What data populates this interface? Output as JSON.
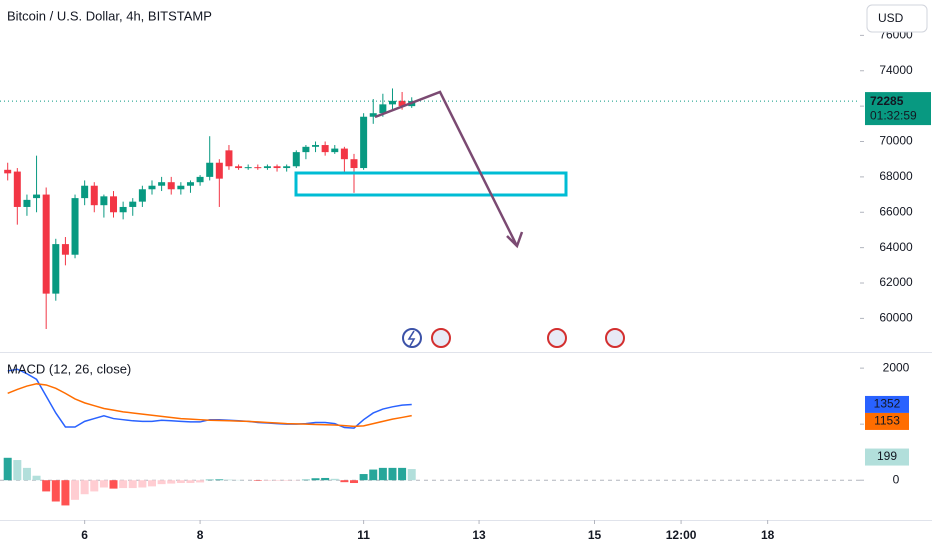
{
  "toolbar": {
    "currency": "USD"
  },
  "chart_data": [
    {
      "type": "candlestick",
      "title": "Bitcoin / U.S. Dollar, 4h, BITSTAMP",
      "open": [
        68400,
        68300,
        66300,
        66800,
        67000,
        61400,
        64200,
        63600,
        66800,
        67500,
        66400,
        66900,
        66000,
        66300,
        66600,
        67300,
        67500,
        67700,
        67300,
        67500,
        67700,
        68000,
        68800,
        69500,
        68600,
        68500,
        68550,
        68500,
        68600,
        68500,
        68600,
        69400,
        69700,
        69800,
        69400,
        69600,
        69000,
        68500,
        71400,
        71600,
        72100,
        72300,
        72000
      ],
      "high": [
        68800,
        68500,
        67000,
        69200,
        67400,
        64500,
        64600,
        67000,
        67800,
        67700,
        67000,
        67200,
        66600,
        66800,
        67500,
        67800,
        68000,
        68000,
        67700,
        67800,
        68100,
        70300,
        69000,
        69800,
        68700,
        68700,
        68700,
        68700,
        68700,
        68700,
        69500,
        69800,
        70000,
        70000,
        69800,
        69700,
        69300,
        71600,
        72400,
        72700,
        73000,
        72800,
        72500
      ],
      "low": [
        67800,
        65300,
        65800,
        66000,
        59400,
        61000,
        63000,
        63400,
        66400,
        66000,
        65700,
        65700,
        65600,
        65800,
        66300,
        67000,
        67200,
        67000,
        67000,
        67100,
        67500,
        67800,
        66300,
        68400,
        68400,
        68400,
        68400,
        68400,
        68300,
        68300,
        68500,
        69000,
        69400,
        69200,
        69300,
        68200,
        67100,
        68400,
        71000,
        71400,
        71800,
        71800,
        71900
      ],
      "close": [
        68200,
        66300,
        66700,
        67000,
        61400,
        64200,
        63600,
        66800,
        67500,
        66400,
        66900,
        66000,
        66300,
        66600,
        67300,
        67500,
        67700,
        67300,
        67500,
        67700,
        68000,
        68800,
        67900,
        68600,
        68500,
        68550,
        68500,
        68600,
        68500,
        68600,
        69400,
        69700,
        69800,
        69400,
        69600,
        69000,
        68500,
        71400,
        71600,
        72100,
        72300,
        72000,
        72285
      ],
      "up_color": "#089981",
      "down_color": "#f23645",
      "countdown": "01:32:59",
      "ylim": [
        58100,
        78000
      ],
      "yticks": [
        60000,
        62000,
        64000,
        66000,
        68000,
        70000,
        72000,
        74000,
        76000
      ],
      "xlim": [
        -0.8,
        88.6
      ],
      "xticks": [
        {
          "value": 8,
          "label": "6"
        },
        {
          "value": 20,
          "label": "8"
        },
        {
          "value": 37,
          "label": "11"
        },
        {
          "value": 49,
          "label": "13"
        },
        {
          "value": 61,
          "label": "15"
        },
        {
          "value": 70,
          "label": "12:00"
        },
        {
          "value": 79,
          "label": "18"
        }
      ]
    },
    {
      "type": "macd",
      "title": "MACD (12, 26, close)",
      "series": [
        {
          "color": "#2962ff",
          "values": [
            1950,
            1980,
            1900,
            1800,
            1500,
            1200,
            950,
            950,
            1050,
            1100,
            1150,
            1100,
            1080,
            1060,
            1050,
            1050,
            1070,
            1060,
            1050,
            1040,
            1040,
            1080,
            1080,
            1070,
            1060,
            1050,
            1030,
            1020,
            1010,
            1000,
            1000,
            1010,
            1030,
            1030,
            1010,
            940,
            930,
            1080,
            1200,
            1270,
            1310,
            1340,
            1352
          ]
        },
        {
          "color": "#ff6d00",
          "values": [
            1550,
            1620,
            1680,
            1720,
            1700,
            1640,
            1550,
            1450,
            1380,
            1330,
            1280,
            1250,
            1220,
            1200,
            1180,
            1160,
            1140,
            1120,
            1100,
            1090,
            1080,
            1070,
            1065,
            1060,
            1055,
            1050,
            1040,
            1030,
            1020,
            1010,
            1005,
            1000,
            995,
            990,
            985,
            975,
            960,
            970,
            1010,
            1050,
            1090,
            1120,
            1153
          ]
        },
        {
          "type": "histogram",
          "colors": [
            "#26a69a",
            "#b2dfdb",
            "#ffcdd2",
            "#ff5252"
          ],
          "values": [
            400,
            360,
            220,
            80,
            -200,
            -380,
            -450,
            -350,
            -250,
            -200,
            -130,
            -150,
            -140,
            -140,
            -130,
            -110,
            -70,
            -60,
            -50,
            -50,
            -40,
            10,
            15,
            10,
            5,
            0,
            -10,
            -10,
            -10,
            -10,
            -5,
            10,
            35,
            40,
            25,
            -35,
            -50,
            110,
            190,
            220,
            220,
            220,
            199
          ]
        }
      ],
      "ylim": [
        -710,
        2270
      ],
      "yticks": [
        0,
        1000,
        2000
      ]
    }
  ]
}
